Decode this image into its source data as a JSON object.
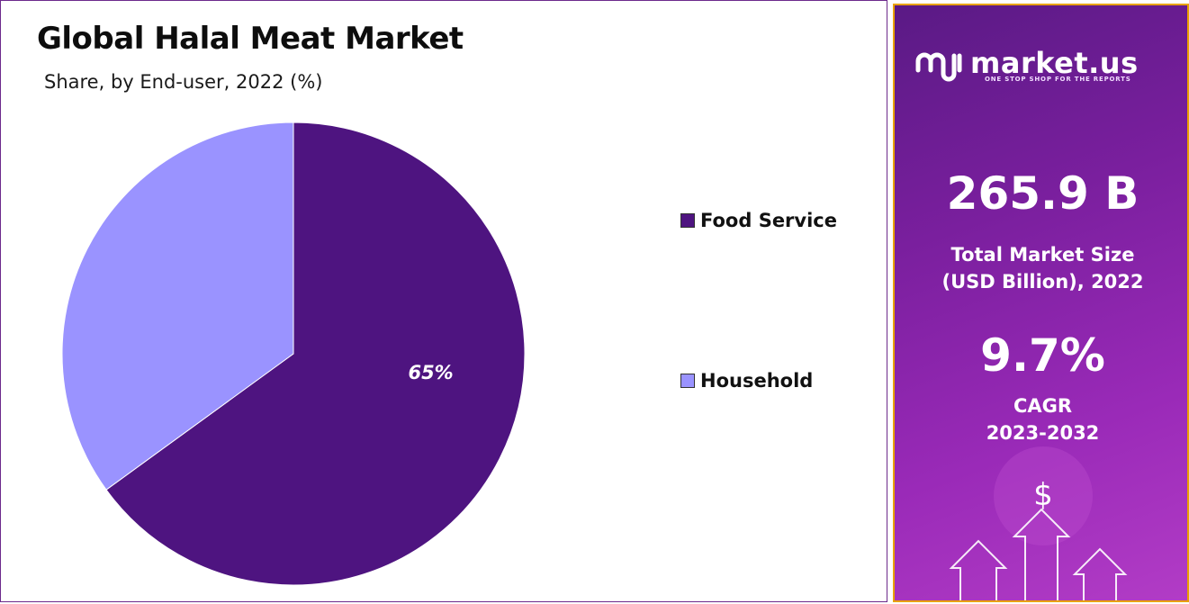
{
  "title": "Global Halal Meat Market",
  "subtitle": "Share, by End-user, 2022 (%)",
  "legend": {
    "items": [
      {
        "label": "Food Service",
        "color": "#4e1480"
      },
      {
        "label": "Household",
        "color": "#9a93ff"
      }
    ]
  },
  "chart_data": {
    "type": "pie",
    "slices": [
      {
        "label": "Food Service",
        "value": 65,
        "color": "#4e1480",
        "data_label": "65%"
      },
      {
        "label": "Household",
        "value": 35,
        "color": "#9a93ff",
        "data_label": ""
      }
    ],
    "title": "Global Halal Meat Market",
    "subtitle": "Share, by End-user, 2022 (%)",
    "legend_position": "right"
  },
  "sidebar": {
    "logo_text": "market.us",
    "logo_tagline": "ONE STOP SHOP FOR THE REPORTS",
    "market_size_value": "265.9 B",
    "market_size_label_1": "Total Market Size",
    "market_size_label_2": "(USD Billion), 2022",
    "cagr_value": "9.7%",
    "cagr_label_1": "CAGR",
    "cagr_label_2": "2023-2032",
    "dollar_symbol": "$",
    "background_colors": [
      "#5a1a85",
      "#b23cc6"
    ],
    "border_color": "#e9a100"
  },
  "icons": [
    "market-us-logo-icon",
    "dollar-icon",
    "up-arrow-icon"
  ]
}
